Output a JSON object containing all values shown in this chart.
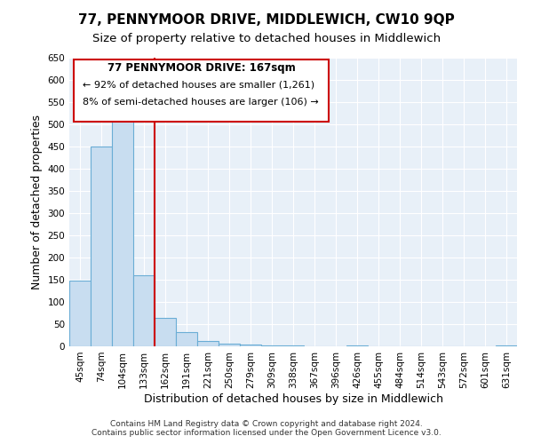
{
  "title": "77, PENNYMOOR DRIVE, MIDDLEWICH, CW10 9QP",
  "subtitle": "Size of property relative to detached houses in Middlewich",
  "bar_labels": [
    "45sqm",
    "74sqm",
    "104sqm",
    "133sqm",
    "162sqm",
    "191sqm",
    "221sqm",
    "250sqm",
    "279sqm",
    "309sqm",
    "338sqm",
    "367sqm",
    "396sqm",
    "426sqm",
    "455sqm",
    "484sqm",
    "514sqm",
    "543sqm",
    "572sqm",
    "601sqm",
    "631sqm"
  ],
  "bar_values": [
    148,
    450,
    508,
    160,
    65,
    32,
    13,
    7,
    5,
    3,
    2,
    1,
    0,
    3,
    0,
    0,
    0,
    0,
    0,
    0,
    3
  ],
  "bar_color": "#c8ddf0",
  "bar_edge_color": "#6aadd5",
  "vline_color": "#cc0000",
  "vline_index": 3.5,
  "annotation_title": "77 PENNYMOOR DRIVE: 167sqm",
  "annotation_line1": "← 92% of detached houses are smaller (1,261)",
  "annotation_line2": "8% of semi-detached houses are larger (106) →",
  "annotation_box_color": "#ffffff",
  "annotation_box_edge_color": "#cc0000",
  "xlabel": "Distribution of detached houses by size in Middlewich",
  "ylabel": "Number of detached properties",
  "ylim": [
    0,
    650
  ],
  "yticks": [
    0,
    50,
    100,
    150,
    200,
    250,
    300,
    350,
    400,
    450,
    500,
    550,
    600,
    650
  ],
  "footer_line1": "Contains HM Land Registry data © Crown copyright and database right 2024.",
  "footer_line2": "Contains public sector information licensed under the Open Government Licence v3.0.",
  "background_color": "#ffffff",
  "plot_bg_color": "#e8f0f8",
  "grid_color": "#ffffff",
  "title_fontsize": 11,
  "subtitle_fontsize": 9.5,
  "axis_label_fontsize": 9,
  "tick_fontsize": 7.5,
  "footer_fontsize": 6.5
}
